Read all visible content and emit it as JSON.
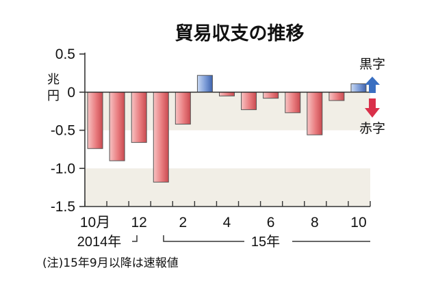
{
  "chart_data": {
    "type": "bar",
    "title": "貿易収支の推移",
    "ylabel": "兆円",
    "ylim": [
      -1.5,
      0.5
    ],
    "yticks": [
      0.5,
      0,
      -0.5,
      -1.0,
      -1.5
    ],
    "ytick_labels": [
      "0.5",
      "0",
      "-0.5",
      "-1.0",
      "-1.5"
    ],
    "categories": [
      "2014-10",
      "2014-11",
      "2014-12",
      "2015-01",
      "2015-02",
      "2015-03",
      "2015-04",
      "2015-05",
      "2015-06",
      "2015-07",
      "2015-08",
      "2015-09",
      "2015-10"
    ],
    "values": [
      -0.74,
      -0.9,
      -0.66,
      -1.18,
      -0.42,
      0.22,
      -0.05,
      -0.23,
      -0.08,
      -0.27,
      -0.56,
      -0.11,
      0.11
    ],
    "xtick_labels": [
      "10月",
      "",
      "12",
      "",
      "2",
      "",
      "4",
      "",
      "6",
      "",
      "8",
      "",
      "10"
    ],
    "year_labels": {
      "y2014": "2014年",
      "y2015": "15年"
    },
    "legend": {
      "surplus": "黒字",
      "deficit": "赤字"
    },
    "colors": {
      "surplus": "#5b7fc4",
      "deficit": "#e46f73",
      "band": "#f1eee6",
      "axis": "#333333"
    },
    "grid": false,
    "note": "(注)15年9月以降は速報値"
  }
}
